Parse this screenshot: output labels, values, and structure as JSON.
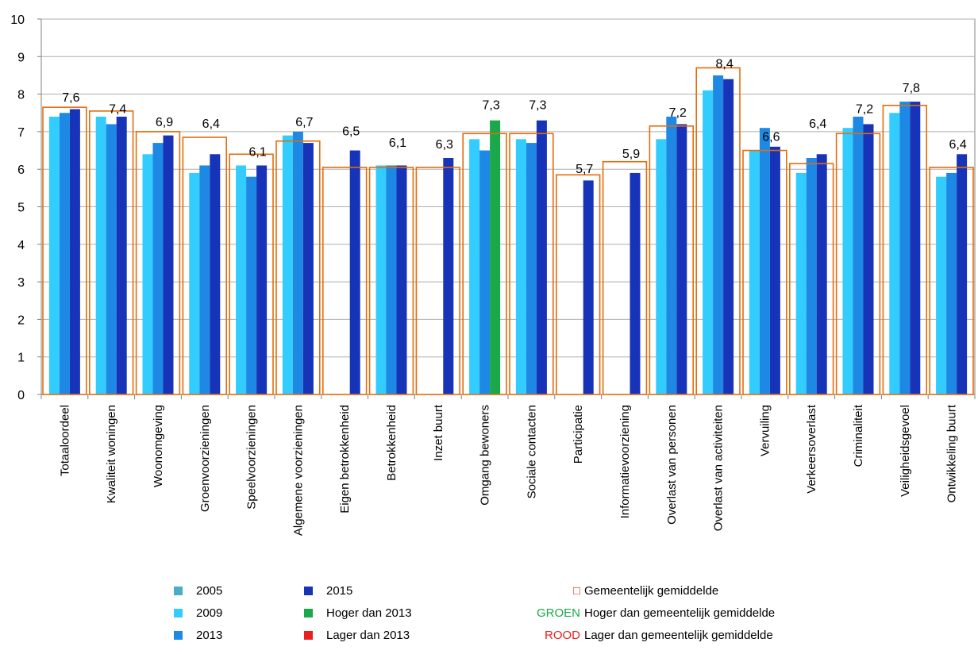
{
  "chart_data": {
    "type": "bar",
    "ylim": [
      0,
      10
    ],
    "yticks": [
      "0",
      "1",
      "2",
      "3",
      "4",
      "5",
      "6",
      "7",
      "8",
      "9",
      "10"
    ],
    "grid": true,
    "legend_position": "bottom",
    "categories": [
      "Totaaloordeel",
      "Kwaliteit woningen",
      "Woonomgeving",
      "Groenvoorzieningen",
      "Speelvoorzieningen",
      "Algemene voorzieningen",
      "Eigen betrokkenheid",
      "Betrokkenheid",
      "Inzet buurt",
      "Omgang bewoners",
      "Sociale contacten",
      "Participatie",
      "Informatievoorziening",
      "Overlast van personen",
      "Overlast van activiteiten",
      "Vervuiling",
      "Verkeersoverlast",
      "Criminaliteit",
      "Veiligheidsgevoel",
      "Ontwikkeling buurt"
    ],
    "series": [
      {
        "name": "2005",
        "color": "#4bacc6",
        "values": [
          null,
          null,
          null,
          null,
          null,
          null,
          null,
          null,
          null,
          null,
          null,
          null,
          null,
          null,
          null,
          null,
          null,
          null,
          null,
          null
        ]
      },
      {
        "name": "2009",
        "color": "#33ccff",
        "values": [
          7.4,
          7.4,
          6.4,
          5.9,
          6.1,
          6.9,
          null,
          6.1,
          null,
          6.8,
          6.8,
          null,
          null,
          6.8,
          8.1,
          6.5,
          5.9,
          7.1,
          7.5,
          5.8
        ]
      },
      {
        "name": "2013",
        "color": "#1e88e5",
        "values": [
          7.5,
          7.2,
          6.7,
          6.1,
          5.8,
          7.0,
          null,
          6.1,
          null,
          6.5,
          6.7,
          null,
          null,
          7.4,
          8.5,
          7.1,
          6.3,
          7.4,
          7.8,
          5.9
        ]
      },
      {
        "name": "2015",
        "color": "#1734b8",
        "values": [
          7.6,
          7.4,
          6.9,
          6.4,
          6.1,
          6.7,
          6.5,
          6.1,
          6.3,
          7.3,
          7.3,
          5.7,
          5.9,
          7.2,
          8.4,
          6.6,
          6.4,
          7.2,
          7.8,
          6.4
        ]
      }
    ],
    "highlight_2015": [
      null,
      null,
      null,
      null,
      null,
      null,
      null,
      null,
      null,
      "higher",
      null,
      null,
      null,
      null,
      null,
      null,
      null,
      null,
      null,
      null
    ],
    "municipal_average": [
      7.65,
      7.55,
      7.0,
      6.85,
      6.4,
      6.75,
      6.05,
      6.05,
      6.05,
      6.95,
      6.95,
      5.85,
      6.2,
      7.15,
      8.7,
      6.5,
      6.15,
      6.95,
      7.7,
      6.05
    ],
    "data_labels": [
      "7,6",
      "7,4",
      "6,9",
      "6,4",
      "6,1",
      "6,7",
      "6,5",
      "6,1",
      "6,3",
      "7,3",
      "7,3",
      "5,7",
      "5,9",
      "7,2",
      "8,4",
      "6,6",
      "6,4",
      "7,2",
      "7,8",
      "6,4"
    ],
    "label_values": [
      7.8,
      7.5,
      7.15,
      7.1,
      6.35,
      7.15,
      6.9,
      6.6,
      6.55,
      7.6,
      7.6,
      5.9,
      6.3,
      7.4,
      8.7,
      6.75,
      7.1,
      7.5,
      8.05,
      6.55
    ],
    "colors": {
      "higher": "#1aa84a",
      "lower": "#e8201f",
      "average_outline": "#e46c0a",
      "grid": "#aeaeae",
      "axis": "#808080"
    }
  },
  "legend": {
    "items": [
      {
        "label": "2005",
        "color": "#4bacc6"
      },
      {
        "label": "2009",
        "color": "#33ccff"
      },
      {
        "label": "2013",
        "color": "#1e88e5"
      },
      {
        "label": "2015",
        "color": "#1734b8"
      },
      {
        "label": "Hoger dan 2013",
        "color": "#1aa84a"
      },
      {
        "label": "Lager dan 2013",
        "color": "#e8201f"
      }
    ],
    "average_symbol": "□",
    "average_label": "Gemeentelijk gemiddelde",
    "groen_code": "GROEN",
    "groen_label": "Hoger dan gemeentelijk gemiddelde",
    "rood_code": "ROOD",
    "rood_label": "Lager dan gemeentelijk gemiddelde",
    "groen_color": "#1aa84a",
    "rood_color": "#e8201f",
    "symbol_color": "#e8201f"
  }
}
